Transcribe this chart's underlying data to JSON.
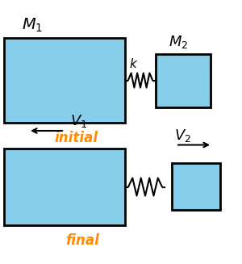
{
  "bg_color": "#ffffff",
  "box_color": "#87CEEB",
  "box_edge_color": "#000000",
  "spring_color": "#000000",
  "arrow_color": "#000000",
  "label_color": "#FF8C00",
  "text_color": "#000000",
  "initial_label": "initial",
  "final_label": "final",
  "figsize": [
    3.0,
    3.27
  ],
  "dpi": 100
}
